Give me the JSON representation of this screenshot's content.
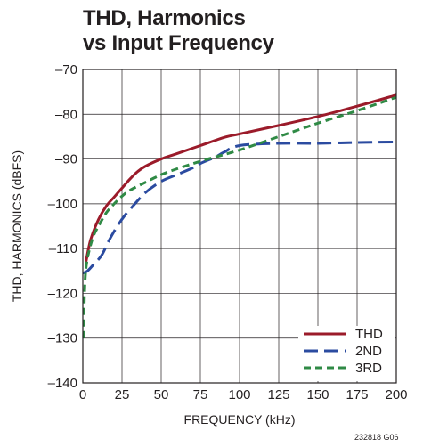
{
  "title_line1": "THD, Harmonics",
  "title_line2": "vs Input Frequency",
  "figure_code": "232818 G06",
  "chart_data": {
    "type": "line",
    "title": "THD, Harmonics vs Input Frequency",
    "xlabel": "FREQUENCY (kHz)",
    "ylabel": "THD, HARMONICS (dBFS)",
    "xlim": [
      0,
      200
    ],
    "ylim": [
      -140,
      -70
    ],
    "xticks": [
      0,
      25,
      50,
      75,
      100,
      125,
      150,
      175,
      200
    ],
    "yticks": [
      -70,
      -80,
      -90,
      -100,
      -110,
      -120,
      -130,
      -140
    ],
    "ytick_labels": [
      "–70",
      "–80",
      "–90",
      "–100",
      "–110",
      "–120",
      "–130",
      "–140"
    ],
    "grid": true,
    "legend_position": "bottom-right",
    "series": [
      {
        "name": "THD",
        "color": "#9b1b2a",
        "style": "solid",
        "x": [
          2,
          5,
          10,
          15,
          20,
          25,
          30,
          35,
          40,
          50,
          60,
          75,
          90,
          100,
          125,
          150,
          175,
          200
        ],
        "y": [
          -113,
          -108,
          -103.5,
          -100.5,
          -98.5,
          -96.5,
          -94.5,
          -92.8,
          -91.6,
          -90,
          -88.8,
          -87,
          -85.2,
          -84.4,
          -82.5,
          -80.5,
          -78.2,
          -75.7
        ]
      },
      {
        "name": "2ND",
        "color": "#2b4ba0",
        "style": "longdash",
        "x": [
          0,
          3,
          7,
          12,
          17,
          22,
          27,
          32,
          40,
          50,
          60,
          70,
          75,
          85,
          90,
          100,
          125,
          150,
          175,
          200
        ],
        "y": [
          -115.5,
          -115,
          -113.5,
          -111.5,
          -108,
          -105,
          -102.5,
          -100.5,
          -97.5,
          -95,
          -93.5,
          -92,
          -91,
          -89.5,
          -88.5,
          -87,
          -86.5,
          -86.5,
          -86.3,
          -86.2
        ]
      },
      {
        "name": "3RD",
        "color": "#2f8a45",
        "style": "dash",
        "x": [
          0.5,
          1,
          2,
          4,
          7,
          10,
          15,
          20,
          25,
          30,
          40,
          50,
          60,
          75,
          85,
          100,
          125,
          150,
          175,
          200
        ],
        "y": [
          -130,
          -121,
          -114.5,
          -110.5,
          -107,
          -105,
          -102,
          -100,
          -98.3,
          -97,
          -95.2,
          -93.5,
          -92.2,
          -90.5,
          -89.5,
          -88,
          -85,
          -82,
          -79.2,
          -76.2
        ]
      }
    ]
  }
}
